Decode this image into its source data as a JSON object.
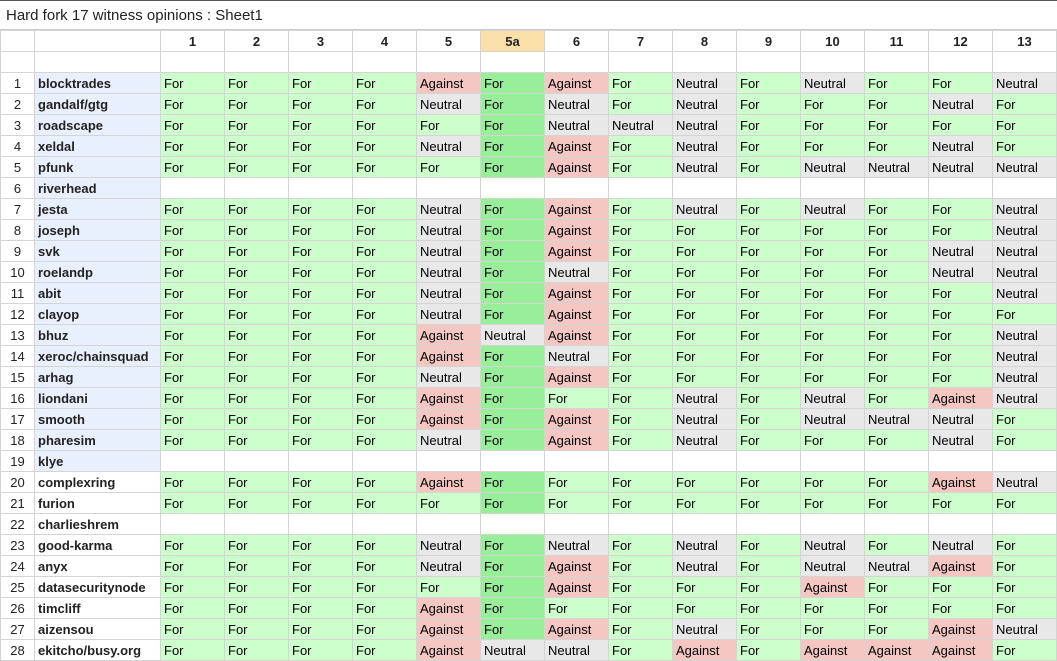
{
  "title": "Hard fork 17 witness opinions : Sheet1",
  "columns": [
    "1",
    "2",
    "3",
    "4",
    "5",
    "5a",
    "6",
    "7",
    "8",
    "9",
    "10",
    "11",
    "12",
    "13"
  ],
  "rows": [
    {
      "num": "1",
      "name": "blocktrades",
      "blue": true,
      "votes": [
        "For",
        "For",
        "For",
        "For",
        "Against",
        "For",
        "Against",
        "For",
        "Neutral",
        "For",
        "Neutral",
        "For",
        "For",
        "Neutral"
      ]
    },
    {
      "num": "2",
      "name": "gandalf/gtg",
      "blue": true,
      "votes": [
        "For",
        "For",
        "For",
        "For",
        "Neutral",
        "For",
        "Neutral",
        "For",
        "Neutral",
        "For",
        "For",
        "For",
        "Neutral",
        "For"
      ]
    },
    {
      "num": "3",
      "name": "roadscape",
      "blue": true,
      "votes": [
        "For",
        "For",
        "For",
        "For",
        "For",
        "For",
        "Neutral",
        "Neutral",
        "Neutral",
        "For",
        "For",
        "For",
        "For",
        "For"
      ]
    },
    {
      "num": "4",
      "name": "xeldal",
      "blue": true,
      "votes": [
        "For",
        "For",
        "For",
        "For",
        "Neutral",
        "For",
        "Against",
        "For",
        "Neutral",
        "For",
        "For",
        "For",
        "Neutral",
        "For"
      ]
    },
    {
      "num": "5",
      "name": "pfunk",
      "blue": true,
      "votes": [
        "For",
        "For",
        "For",
        "For",
        "For",
        "For",
        "Against",
        "For",
        "Neutral",
        "For",
        "Neutral",
        "Neutral",
        "Neutral",
        "Neutral"
      ]
    },
    {
      "num": "6",
      "name": "riverhead",
      "blue": true,
      "votes": [
        "",
        "",
        "",
        "",
        "",
        "",
        "",
        "",
        "",
        "",
        "",
        "",
        "",
        ""
      ]
    },
    {
      "num": "7",
      "name": "jesta",
      "blue": true,
      "votes": [
        "For",
        "For",
        "For",
        "For",
        "Neutral",
        "For",
        "Against",
        "For",
        "Neutral",
        "For",
        "Neutral",
        "For",
        "For",
        "Neutral"
      ]
    },
    {
      "num": "8",
      "name": "joseph",
      "blue": true,
      "votes": [
        "For",
        "For",
        "For",
        "For",
        "Neutral",
        "For",
        "Against",
        "For",
        "For",
        "For",
        "For",
        "For",
        "For",
        "Neutral"
      ]
    },
    {
      "num": "9",
      "name": "svk",
      "blue": true,
      "votes": [
        "For",
        "For",
        "For",
        "For",
        "Neutral",
        "For",
        "Against",
        "For",
        "For",
        "For",
        "For",
        "For",
        "Neutral",
        "Neutral"
      ]
    },
    {
      "num": "10",
      "name": "roelandp",
      "blue": true,
      "votes": [
        "For",
        "For",
        "For",
        "For",
        "Neutral",
        "For",
        "Neutral",
        "For",
        "For",
        "For",
        "For",
        "For",
        "Neutral",
        "Neutral"
      ]
    },
    {
      "num": "11",
      "name": "abit",
      "blue": true,
      "votes": [
        "For",
        "For",
        "For",
        "For",
        "Neutral",
        "For",
        "Against",
        "For",
        "For",
        "For",
        "For",
        "For",
        "For",
        "Neutral"
      ]
    },
    {
      "num": "12",
      "name": "clayop",
      "blue": true,
      "votes": [
        "For",
        "For",
        "For",
        "For",
        "Neutral",
        "For",
        "Against",
        "For",
        "For",
        "For",
        "For",
        "For",
        "For",
        "For"
      ]
    },
    {
      "num": "13",
      "name": "bhuz",
      "blue": true,
      "votes": [
        "For",
        "For",
        "For",
        "For",
        "Against",
        "Neutral",
        "Against",
        "For",
        "For",
        "For",
        "For",
        "For",
        "For",
        "Neutral"
      ]
    },
    {
      "num": "14",
      "name": "xeroc/chainsquad",
      "blue": true,
      "votes": [
        "For",
        "For",
        "For",
        "For",
        "Against",
        "For",
        "Neutral",
        "For",
        "For",
        "For",
        "For",
        "For",
        "For",
        "Neutral"
      ]
    },
    {
      "num": "15",
      "name": "arhag",
      "blue": true,
      "votes": [
        "For",
        "For",
        "For",
        "For",
        "Neutral",
        "For",
        "Against",
        "For",
        "For",
        "For",
        "For",
        "For",
        "For",
        "Neutral"
      ]
    },
    {
      "num": "16",
      "name": "liondani",
      "blue": true,
      "votes": [
        "For",
        "For",
        "For",
        "For",
        "Against",
        "For",
        "For",
        "For",
        "Neutral",
        "For",
        "Neutral",
        "For",
        "Against",
        "Neutral"
      ]
    },
    {
      "num": "17",
      "name": "smooth",
      "blue": true,
      "votes": [
        "For",
        "For",
        "For",
        "For",
        "Against",
        "For",
        "Against",
        "For",
        "Neutral",
        "For",
        "Neutral",
        "Neutral",
        "Neutral",
        "For"
      ]
    },
    {
      "num": "18",
      "name": "pharesim",
      "blue": true,
      "votes": [
        "For",
        "For",
        "For",
        "For",
        "Neutral",
        "For",
        "Against",
        "For",
        "Neutral",
        "For",
        "For",
        "For",
        "Neutral",
        "For"
      ]
    },
    {
      "num": "19",
      "name": "klye",
      "blue": true,
      "votes": [
        "",
        "",
        "",
        "",
        "",
        "",
        "",
        "",
        "",
        "",
        "",
        "",
        "",
        ""
      ]
    },
    {
      "num": "20",
      "name": "complexring",
      "blue": false,
      "votes": [
        "For",
        "For",
        "For",
        "For",
        "Against",
        "For",
        "For",
        "For",
        "For",
        "For",
        "For",
        "For",
        "Against",
        "Neutral"
      ]
    },
    {
      "num": "21",
      "name": "furion",
      "blue": false,
      "votes": [
        "For",
        "For",
        "For",
        "For",
        "For",
        "For",
        "For",
        "For",
        "For",
        "For",
        "For",
        "For",
        "For",
        "For"
      ]
    },
    {
      "num": "22",
      "name": "charlieshrem",
      "blue": false,
      "votes": [
        "",
        "",
        "",
        "",
        "",
        "",
        "",
        "",
        "",
        "",
        "",
        "",
        "",
        ""
      ]
    },
    {
      "num": "23",
      "name": "good-karma",
      "blue": false,
      "votes": [
        "For",
        "For",
        "For",
        "For",
        "Neutral",
        "For",
        "Neutral",
        "For",
        "Neutral",
        "For",
        "Neutral",
        "For",
        "Neutral",
        "For"
      ]
    },
    {
      "num": "24",
      "name": "anyx",
      "blue": false,
      "votes": [
        "For",
        "For",
        "For",
        "For",
        "Neutral",
        "For",
        "Against",
        "For",
        "Neutral",
        "For",
        "Neutral",
        "Neutral",
        "Against",
        "For"
      ]
    },
    {
      "num": "25",
      "name": "datasecuritynode",
      "blue": false,
      "votes": [
        "For",
        "For",
        "For",
        "For",
        "For",
        "For",
        "Against",
        "For",
        "For",
        "For",
        "Against",
        "For",
        "For",
        "For"
      ]
    },
    {
      "num": "26",
      "name": "timcliff",
      "blue": false,
      "votes": [
        "For",
        "For",
        "For",
        "For",
        "Against",
        "For",
        "For",
        "For",
        "For",
        "For",
        "For",
        "For",
        "For",
        "For"
      ]
    },
    {
      "num": "27",
      "name": "aizensou",
      "blue": false,
      "votes": [
        "For",
        "For",
        "For",
        "For",
        "Against",
        "For",
        "Against",
        "For",
        "Neutral",
        "For",
        "For",
        "For",
        "Against",
        "Neutral"
      ]
    },
    {
      "num": "28",
      "name": "ekitcho/busy.org",
      "blue": false,
      "votes": [
        "For",
        "For",
        "For",
        "For",
        "Against",
        "Neutral",
        "Neutral",
        "For",
        "Against",
        "For",
        "Against",
        "Against",
        "Against",
        "For"
      ]
    }
  ],
  "colors": {
    "for": "#ccffcc",
    "for_5a": "#99ee99",
    "against": "#f4c7c3",
    "neutral": "#e8e8e8",
    "name_bg": "#e8f0fe",
    "header_5a": "#f9e0a8"
  }
}
